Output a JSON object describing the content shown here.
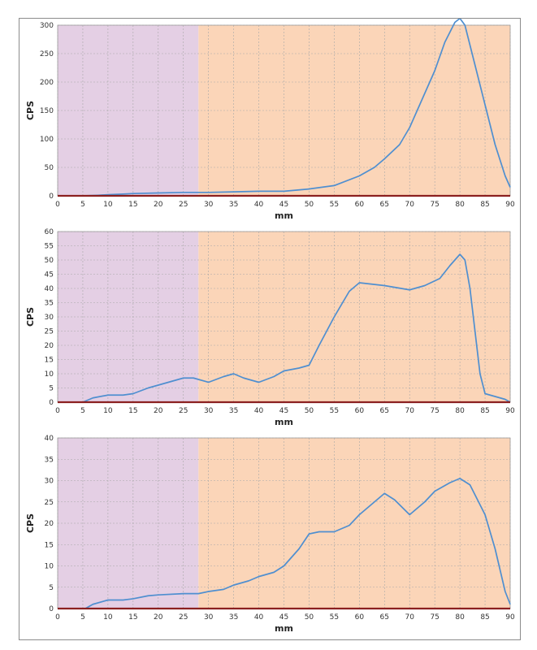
{
  "colors": {
    "region_a": "#e4cfe4",
    "region_b": "#fbd5b8",
    "grid": "#a8a8a8",
    "line": "#4f8fd0",
    "baseline": "#8b2020",
    "axis": "#000000"
  },
  "chart_data": [
    {
      "type": "line",
      "xlabel": "mm",
      "ylabel": "CPS",
      "xlim": [
        0,
        90
      ],
      "ylim": [
        0,
        300
      ],
      "xticks": [
        "0",
        "5",
        "10",
        "15",
        "20",
        "25",
        "30",
        "35",
        "40",
        "45",
        "50",
        "55",
        "60",
        "65",
        "70",
        "75",
        "80",
        "85",
        "90"
      ],
      "yticks": [
        "0",
        "50",
        "100",
        "150",
        "200",
        "250",
        "300"
      ],
      "grid": true,
      "shaded_regions": [
        {
          "from": 0,
          "to": 28,
          "color": "#e4cfe4"
        },
        {
          "from": 28,
          "to": 90,
          "color": "#fbd5b8"
        }
      ],
      "series": [
        {
          "x": [
            5,
            8,
            10,
            13,
            15,
            20,
            25,
            30,
            35,
            40,
            45,
            50,
            55,
            60,
            63,
            65,
            68,
            70,
            72,
            75,
            77,
            79,
            80,
            81,
            83,
            85,
            87,
            89,
            90
          ],
          "y": [
            0,
            1,
            2,
            3,
            4,
            5,
            6,
            6,
            7,
            8,
            8,
            12,
            18,
            35,
            50,
            65,
            90,
            120,
            160,
            220,
            270,
            305,
            312,
            300,
            230,
            160,
            90,
            35,
            15
          ]
        }
      ]
    },
    {
      "type": "line",
      "xlabel": "mm",
      "ylabel": "CPS",
      "xlim": [
        0,
        90
      ],
      "ylim": [
        0,
        60
      ],
      "xticks": [
        "0",
        "5",
        "10",
        "15",
        "20",
        "25",
        "30",
        "35",
        "40",
        "45",
        "50",
        "55",
        "60",
        "65",
        "70",
        "75",
        "80",
        "85",
        "90"
      ],
      "yticks": [
        "0",
        "5",
        "10",
        "15",
        "20",
        "25",
        "30",
        "35",
        "40",
        "45",
        "50",
        "55",
        "60"
      ],
      "grid": true,
      "shaded_regions": [
        {
          "from": 0,
          "to": 28,
          "color": "#e4cfe4"
        },
        {
          "from": 28,
          "to": 90,
          "color": "#fbd5b8"
        }
      ],
      "series": [
        {
          "x": [
            5,
            7,
            10,
            13,
            15,
            18,
            20,
            23,
            25,
            27,
            30,
            33,
            35,
            37,
            40,
            43,
            45,
            48,
            50,
            52,
            55,
            58,
            60,
            65,
            70,
            73,
            76,
            78,
            80,
            81,
            82,
            84,
            85,
            87,
            89,
            90
          ],
          "y": [
            0,
            1.5,
            2.5,
            2.5,
            3,
            5,
            6,
            7.5,
            8.5,
            8.5,
            7,
            9,
            10,
            8.5,
            7,
            9,
            11,
            12,
            13,
            20,
            30,
            39,
            42,
            41,
            39.5,
            41,
            43.5,
            48,
            52,
            50,
            40,
            10,
            3,
            2,
            1,
            0
          ]
        }
      ]
    },
    {
      "type": "line",
      "xlabel": "mm",
      "ylabel": "CPS",
      "xlim": [
        0,
        90
      ],
      "ylim": [
        0,
        40
      ],
      "xticks": [
        "0",
        "5",
        "10",
        "15",
        "20",
        "25",
        "30",
        "35",
        "40",
        "45",
        "50",
        "55",
        "60",
        "65",
        "70",
        "75",
        "80",
        "85",
        "90"
      ],
      "yticks": [
        "0",
        "5",
        "10",
        "15",
        "20",
        "25",
        "30",
        "35",
        "40"
      ],
      "grid": true,
      "shaded_regions": [
        {
          "from": 0,
          "to": 28,
          "color": "#e4cfe4"
        },
        {
          "from": 28,
          "to": 90,
          "color": "#fbd5b8"
        }
      ],
      "series": [
        {
          "x": [
            5.5,
            7,
            10,
            13,
            15,
            18,
            20,
            25,
            28,
            30,
            33,
            35,
            38,
            40,
            43,
            45,
            48,
            50,
            52,
            55,
            58,
            60,
            63,
            65,
            67,
            70,
            73,
            75,
            78,
            80,
            82,
            85,
            87,
            89,
            90
          ],
          "y": [
            0,
            1,
            2,
            2,
            2.3,
            3,
            3.2,
            3.5,
            3.5,
            4,
            4.5,
            5.5,
            6.5,
            7.5,
            8.5,
            10,
            14,
            17.5,
            18,
            18,
            19.5,
            22,
            25,
            27,
            25.5,
            22,
            25,
            27.5,
            29.5,
            30.5,
            29,
            22,
            14,
            4,
            1
          ]
        }
      ]
    }
  ]
}
